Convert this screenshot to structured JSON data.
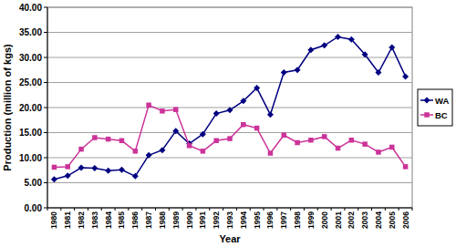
{
  "chart_data": {
    "type": "line",
    "x_label": "Year",
    "y_label": "Production (million of kgs)",
    "categories": [
      "1980",
      "1981",
      "1982",
      "1983",
      "1984",
      "1985",
      "1986",
      "1987",
      "1988",
      "1989",
      "1990",
      "1991",
      "1992",
      "1993",
      "1994",
      "1995",
      "1996",
      "1997",
      "1998",
      "1999",
      "2000",
      "2001",
      "2002",
      "2003",
      "2004",
      "2005",
      "2006"
    ],
    "series": [
      {
        "name": "WA",
        "color": "#000080",
        "marker": "diamond",
        "line_style": "solid",
        "values": [
          5.7,
          6.4,
          8.0,
          7.9,
          7.4,
          7.6,
          6.3,
          10.5,
          11.5,
          15.3,
          12.8,
          14.7,
          18.8,
          19.5,
          21.3,
          23.9,
          18.6,
          27.0,
          27.5,
          31.5,
          32.4,
          34.1,
          33.6,
          30.6,
          27.0,
          32.0,
          26.2
        ]
      },
      {
        "name": "BC",
        "color": "#cc3399",
        "marker": "square",
        "line_style": "solid",
        "values": [
          8.1,
          8.2,
          11.7,
          14.0,
          13.7,
          13.4,
          11.3,
          20.5,
          19.3,
          19.6,
          12.4,
          11.3,
          13.4,
          13.8,
          16.6,
          15.9,
          10.9,
          14.5,
          13.0,
          13.5,
          14.2,
          11.9,
          13.5,
          12.7,
          11.1,
          12.1,
          8.2
        ]
      }
    ],
    "ylim": [
      0,
      40
    ],
    "yticks": [
      {
        "value": 0,
        "label": "0.00"
      },
      {
        "value": 5,
        "label": "5.00"
      },
      {
        "value": 10,
        "label": "10.00"
      },
      {
        "value": 15,
        "label": "15.00"
      },
      {
        "value": 20,
        "label": "20.00"
      },
      {
        "value": 25,
        "label": "25.00"
      },
      {
        "value": 30,
        "label": "30.00"
      },
      {
        "value": 35,
        "label": "35.00"
      },
      {
        "value": 40,
        "label": "40.00"
      }
    ],
    "grid": true,
    "legend": "right"
  }
}
